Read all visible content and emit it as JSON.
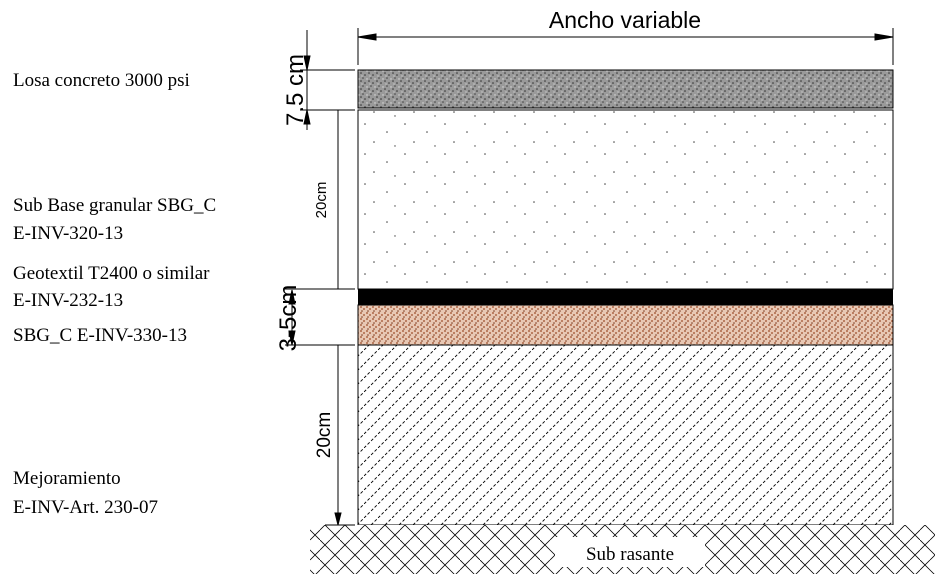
{
  "header": {
    "title": "Ancho variable"
  },
  "layers": [
    {
      "lines": [
        "Losa concreto 3000 psi"
      ],
      "dimension": "7.5 cm"
    },
    {
      "lines": [
        "Sub Base granular SBG_C",
        "E-INV-320-13"
      ],
      "dimension": "20cm"
    },
    {
      "lines": [
        "Geotextil T2400 o similar",
        "E-INV-232-13"
      ]
    },
    {
      "lines": [
        "SBG_C E-INV-330-13"
      ],
      "dimension": "3-5cm"
    },
    {
      "lines": [
        "Mejoramiento",
        "E-INV-Art. 230-07"
      ],
      "dimension": "20cm"
    }
  ],
  "footer": {
    "label": "Sub rasante"
  }
}
